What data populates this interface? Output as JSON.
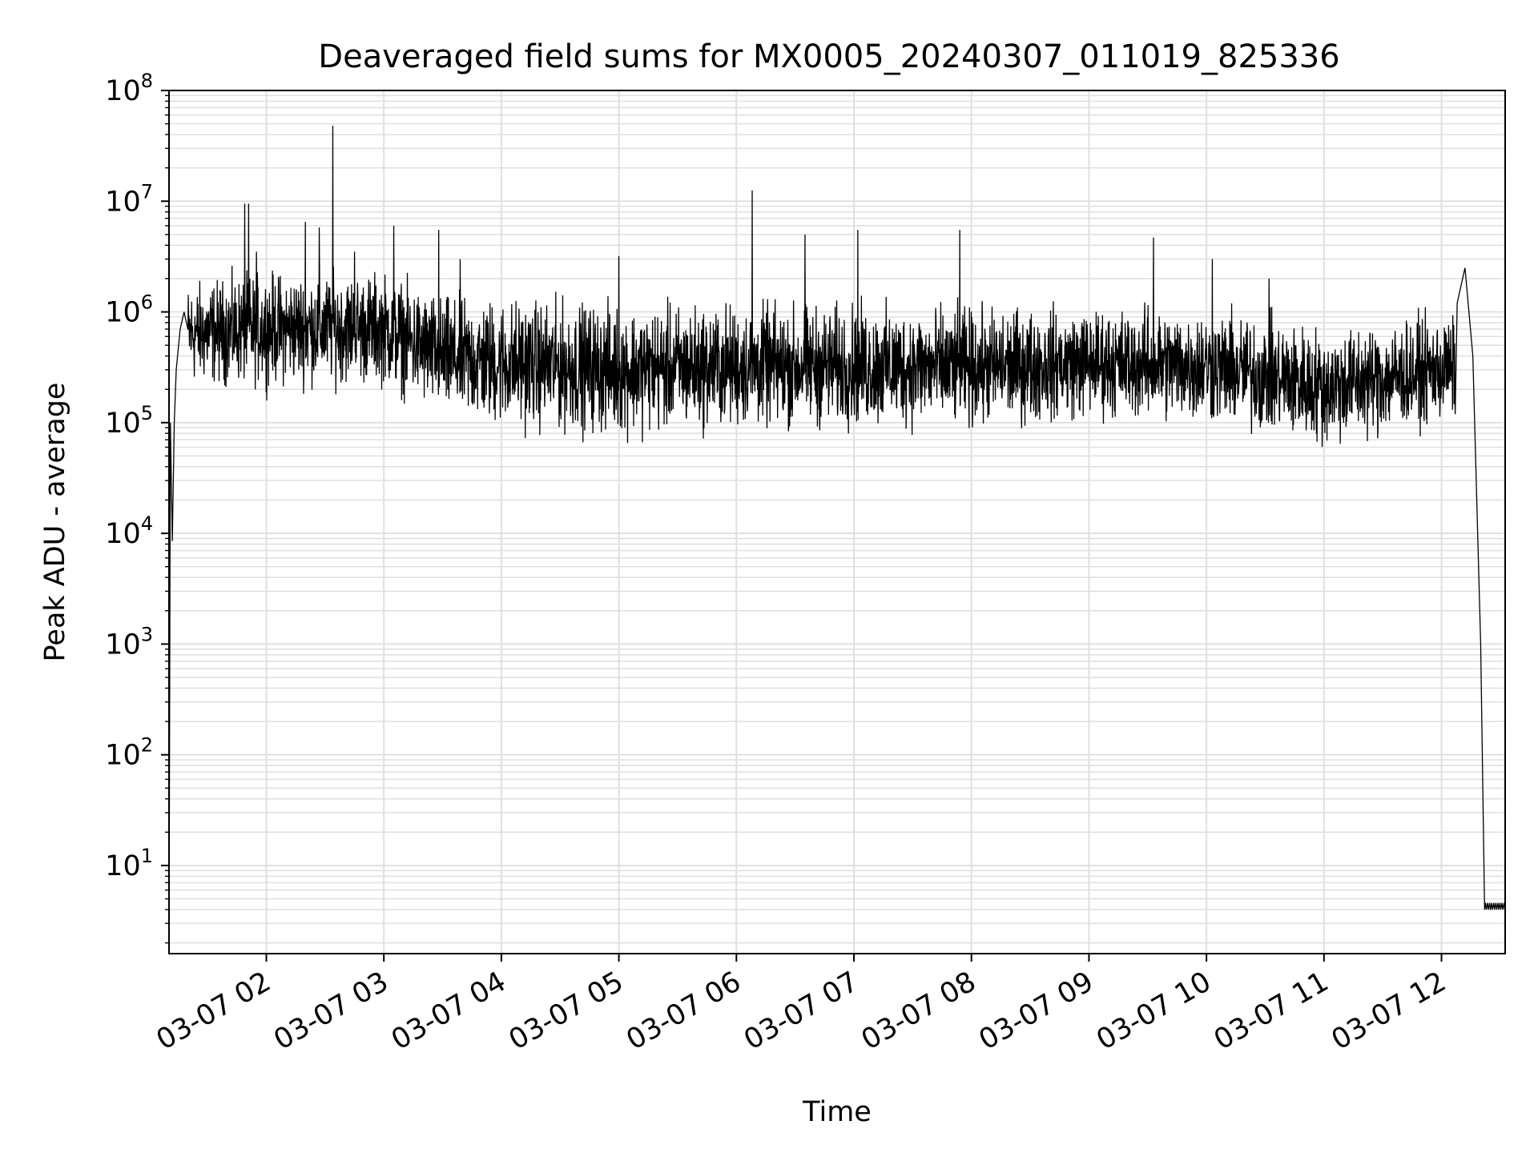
{
  "chart_data": {
    "type": "line",
    "title": "Deaveraged field sums for MX0005_20240307_011019_825336",
    "xlabel": "Time",
    "ylabel": "Peak ADU - average",
    "yscale": "log",
    "ylim": [
      1.6,
      100000000
    ],
    "xlim": [
      "2024-03-07 01:10:19",
      "2024-03-07 12:32:30"
    ],
    "x_tick_labels": [
      "03-07 02",
      "03-07 03",
      "03-07 04",
      "03-07 05",
      "03-07 06",
      "03-07 07",
      "03-07 08",
      "03-07 09",
      "03-07 10",
      "03-07 11",
      "03-07 12"
    ],
    "y_tick_labels": [
      {
        "base": "10",
        "exp": "1"
      },
      {
        "base": "10",
        "exp": "2"
      },
      {
        "base": "10",
        "exp": "3"
      },
      {
        "base": "10",
        "exp": "4"
      },
      {
        "base": "10",
        "exp": "5"
      },
      {
        "base": "10",
        "exp": "6"
      },
      {
        "base": "10",
        "exp": "7"
      },
      {
        "base": "10",
        "exp": "8"
      }
    ],
    "grid": true,
    "line_color": "#000000",
    "grid_color": "#e0e0e0",
    "series": [
      {
        "x": [
          "2024-03-07 01:10:19",
          "2024-03-07 01:11:00",
          "2024-03-07 01:12:00",
          "2024-03-07 01:13:00",
          "2024-03-07 01:14:00",
          "2024-03-07 01:16:00",
          "2024-03-07 01:18:00",
          "2024-03-07 01:20:00",
          "2024-03-07 01:25:00",
          "2024-03-07 01:30:00",
          "2024-03-07 01:40:00",
          "2024-03-07 01:50:00",
          "2024-03-07 01:55:00",
          "2024-03-07 02:00:00",
          "2024-03-07 02:15:00",
          "2024-03-07 02:30:00",
          "2024-03-07 02:45:00",
          "2024-03-07 03:00:00",
          "2024-03-07 03:15:00",
          "2024-03-07 03:30:00",
          "2024-03-07 03:45:00",
          "2024-03-07 04:00:00",
          "2024-03-07 04:30:00",
          "2024-03-07 05:00:00",
          "2024-03-07 05:30:00",
          "2024-03-07 06:00:00",
          "2024-03-07 06:30:00",
          "2024-03-07 07:00:00",
          "2024-03-07 07:30:00",
          "2024-03-07 08:00:00",
          "2024-03-07 08:30:00",
          "2024-03-07 09:00:00",
          "2024-03-07 09:30:00",
          "2024-03-07 10:00:00",
          "2024-03-07 10:30:00",
          "2024-03-07 11:00:00",
          "2024-03-07 11:30:00",
          "2024-03-07 12:00:00",
          "2024-03-07 12:08:00",
          "2024-03-07 12:12:00",
          "2024-03-07 12:16:00",
          "2024-03-07 12:20:00",
          "2024-03-07 12:22:00",
          "2024-03-07 12:25:00",
          "2024-03-07 12:32:30"
        ],
        "values": [
          1.6,
          100000,
          8500,
          100000,
          300000,
          700000,
          1000000,
          1200000,
          600000,
          700000,
          650000,
          700000,
          900000,
          700000,
          650000,
          750000,
          700000,
          650000,
          600000,
          450000,
          250000,
          350000,
          300000,
          250000,
          300000,
          350000,
          450000,
          350000,
          300000,
          250000,
          250000,
          400000,
          450000,
          350000,
          250000,
          150000,
          180000,
          220000,
          1200000,
          1000000,
          400000,
          1000,
          4,
          4,
          4
        ]
      }
    ],
    "noise_envelope": [
      {
        "x": "2024-03-07 01:20:00",
        "low": 200000,
        "high": 2000000
      },
      {
        "x": "2024-03-07 02:00:00",
        "low": 200000,
        "high": 2500000
      },
      {
        "x": "2024-03-07 03:00:00",
        "low": 200000,
        "high": 2500000
      },
      {
        "x": "2024-03-07 03:30:00",
        "low": 100000,
        "high": 1500000
      },
      {
        "x": "2024-03-07 04:00:00",
        "low": 80000,
        "high": 1500000
      },
      {
        "x": "2024-03-07 05:00:00",
        "low": 70000,
        "high": 1300000
      },
      {
        "x": "2024-03-07 06:00:00",
        "low": 80000,
        "high": 1300000
      },
      {
        "x": "2024-03-07 07:00:00",
        "low": 80000,
        "high": 1300000
      },
      {
        "x": "2024-03-07 08:00:00",
        "low": 80000,
        "high": 1200000
      },
      {
        "x": "2024-03-07 09:00:00",
        "low": 100000,
        "high": 1200000
      },
      {
        "x": "2024-03-07 10:00:00",
        "low": 90000,
        "high": 1200000
      },
      {
        "x": "2024-03-07 10:30:00",
        "low": 70000,
        "high": 1000000
      },
      {
        "x": "2024-03-07 11:00:00",
        "low": 55000,
        "high": 800000
      },
      {
        "x": "2024-03-07 11:30:00",
        "low": 70000,
        "high": 900000
      },
      {
        "x": "2024-03-07 12:07:00",
        "low": 100000,
        "high": 1000000
      }
    ],
    "spikes": [
      {
        "x": "2024-03-07 01:11:00",
        "value": 100000
      },
      {
        "x": "2024-03-07 01:49:00",
        "value": 9500000
      },
      {
        "x": "2024-03-07 01:51:00",
        "value": 9500000
      },
      {
        "x": "2024-03-07 01:55:00",
        "value": 3500000
      },
      {
        "x": "2024-03-07 02:20:00",
        "value": 6500000
      },
      {
        "x": "2024-03-07 02:27:00",
        "value": 5800000
      },
      {
        "x": "2024-03-07 02:34:00",
        "value": 48000000
      },
      {
        "x": "2024-03-07 02:45:00",
        "value": 3500000
      },
      {
        "x": "2024-03-07 03:05:00",
        "value": 6000000
      },
      {
        "x": "2024-03-07 03:28:00",
        "value": 5500000
      },
      {
        "x": "2024-03-07 03:39:00",
        "value": 3000000
      },
      {
        "x": "2024-03-07 05:00:00",
        "value": 3200000
      },
      {
        "x": "2024-03-07 06:08:00",
        "value": 12500000
      },
      {
        "x": "2024-03-07 06:35:00",
        "value": 5000000
      },
      {
        "x": "2024-03-07 07:02:00",
        "value": 5500000
      },
      {
        "x": "2024-03-07 07:54:00",
        "value": 5500000
      },
      {
        "x": "2024-03-07 09:33:00",
        "value": 4700000
      },
      {
        "x": "2024-03-07 10:03:00",
        "value": 3000000
      },
      {
        "x": "2024-03-07 10:32:00",
        "value": 2000000
      },
      {
        "x": "2024-03-07 12:11:00",
        "value": 2500000
      }
    ]
  }
}
